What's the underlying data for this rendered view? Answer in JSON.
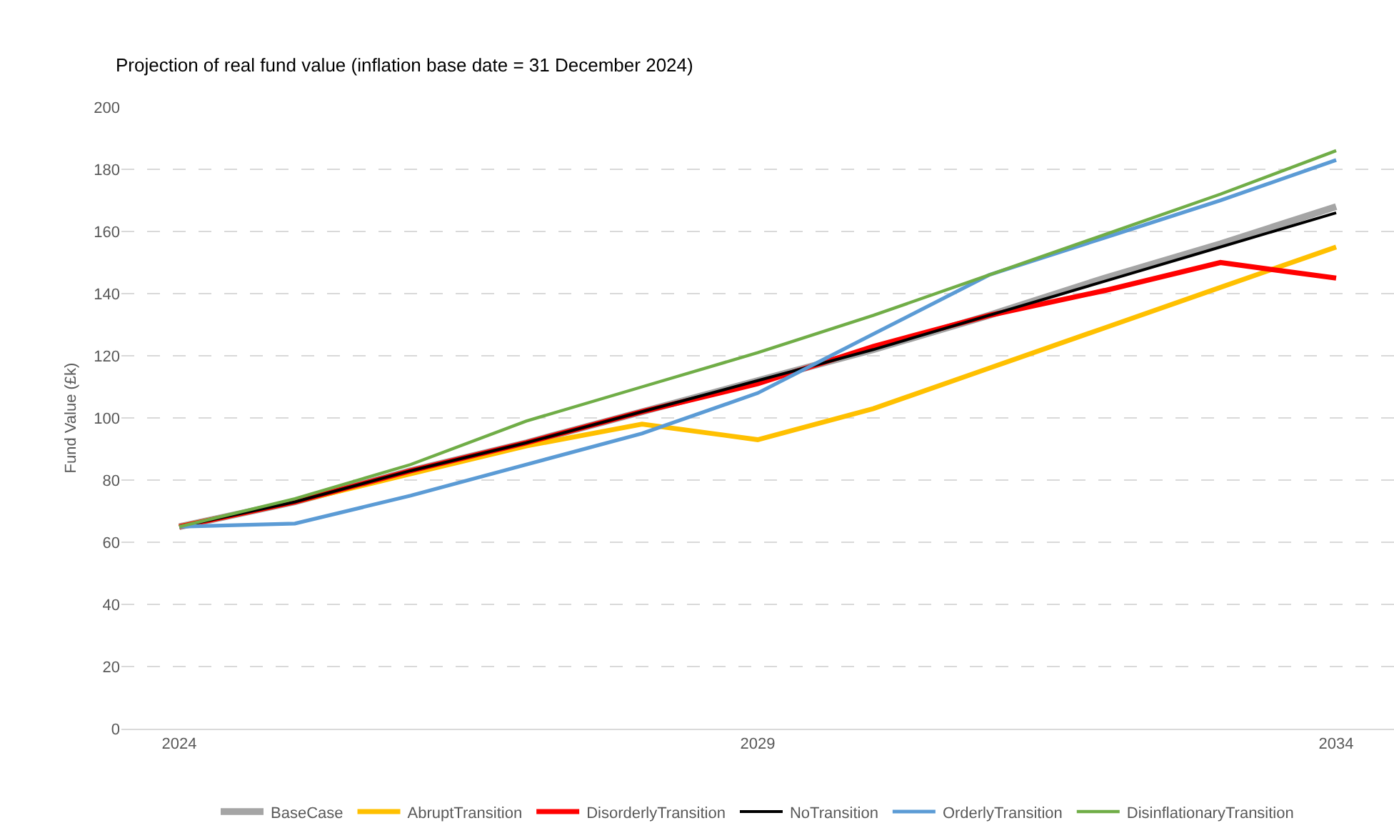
{
  "chart_data": {
    "type": "line",
    "title": "Projection of real fund value (inflation base date = 31 December 2024)",
    "ylabel": "Fund Value (£k)",
    "x": [
      2024,
      2025,
      2026,
      2027,
      2028,
      2029,
      2030,
      2031,
      2032,
      2033,
      2034
    ],
    "xlim": [
      2023.5,
      2034.5
    ],
    "xticks": [
      2024,
      2029,
      2034
    ],
    "ylim": [
      0,
      200
    ],
    "yticks": [
      0,
      20,
      40,
      60,
      80,
      100,
      120,
      140,
      160,
      180,
      200
    ],
    "grid": "y",
    "legend": "bottom",
    "marker": "none",
    "line_style": "solid",
    "series": [
      {
        "name": "BaseCase",
        "color": "#a5a5a5",
        "values": [
          65,
          73,
          83,
          92,
          102,
          112,
          122,
          133,
          145,
          156,
          168
        ]
      },
      {
        "name": "AbruptTransition",
        "color": "#ffc000",
        "values": [
          65,
          73,
          82,
          91,
          98,
          93,
          103,
          116,
          129,
          142,
          155
        ]
      },
      {
        "name": "DisorderlyTransition",
        "color": "#ff0000",
        "values": [
          65,
          73,
          83,
          92,
          102,
          111,
          123,
          133,
          141,
          150,
          145
        ]
      },
      {
        "name": "NoTransition",
        "color": "#000000",
        "values": [
          65,
          73,
          83,
          92,
          102,
          112,
          122,
          133,
          144,
          155,
          166
        ]
      },
      {
        "name": "OrderlyTransition",
        "color": "#5b9bd5",
        "values": [
          65,
          66,
          75,
          85,
          95,
          108,
          127,
          146,
          158,
          170,
          183
        ]
      },
      {
        "name": "DisinflationaryTransition",
        "color": "#70ad47",
        "values": [
          65,
          74,
          85,
          99,
          110,
          121,
          133,
          146,
          159,
          172,
          186
        ]
      }
    ]
  }
}
